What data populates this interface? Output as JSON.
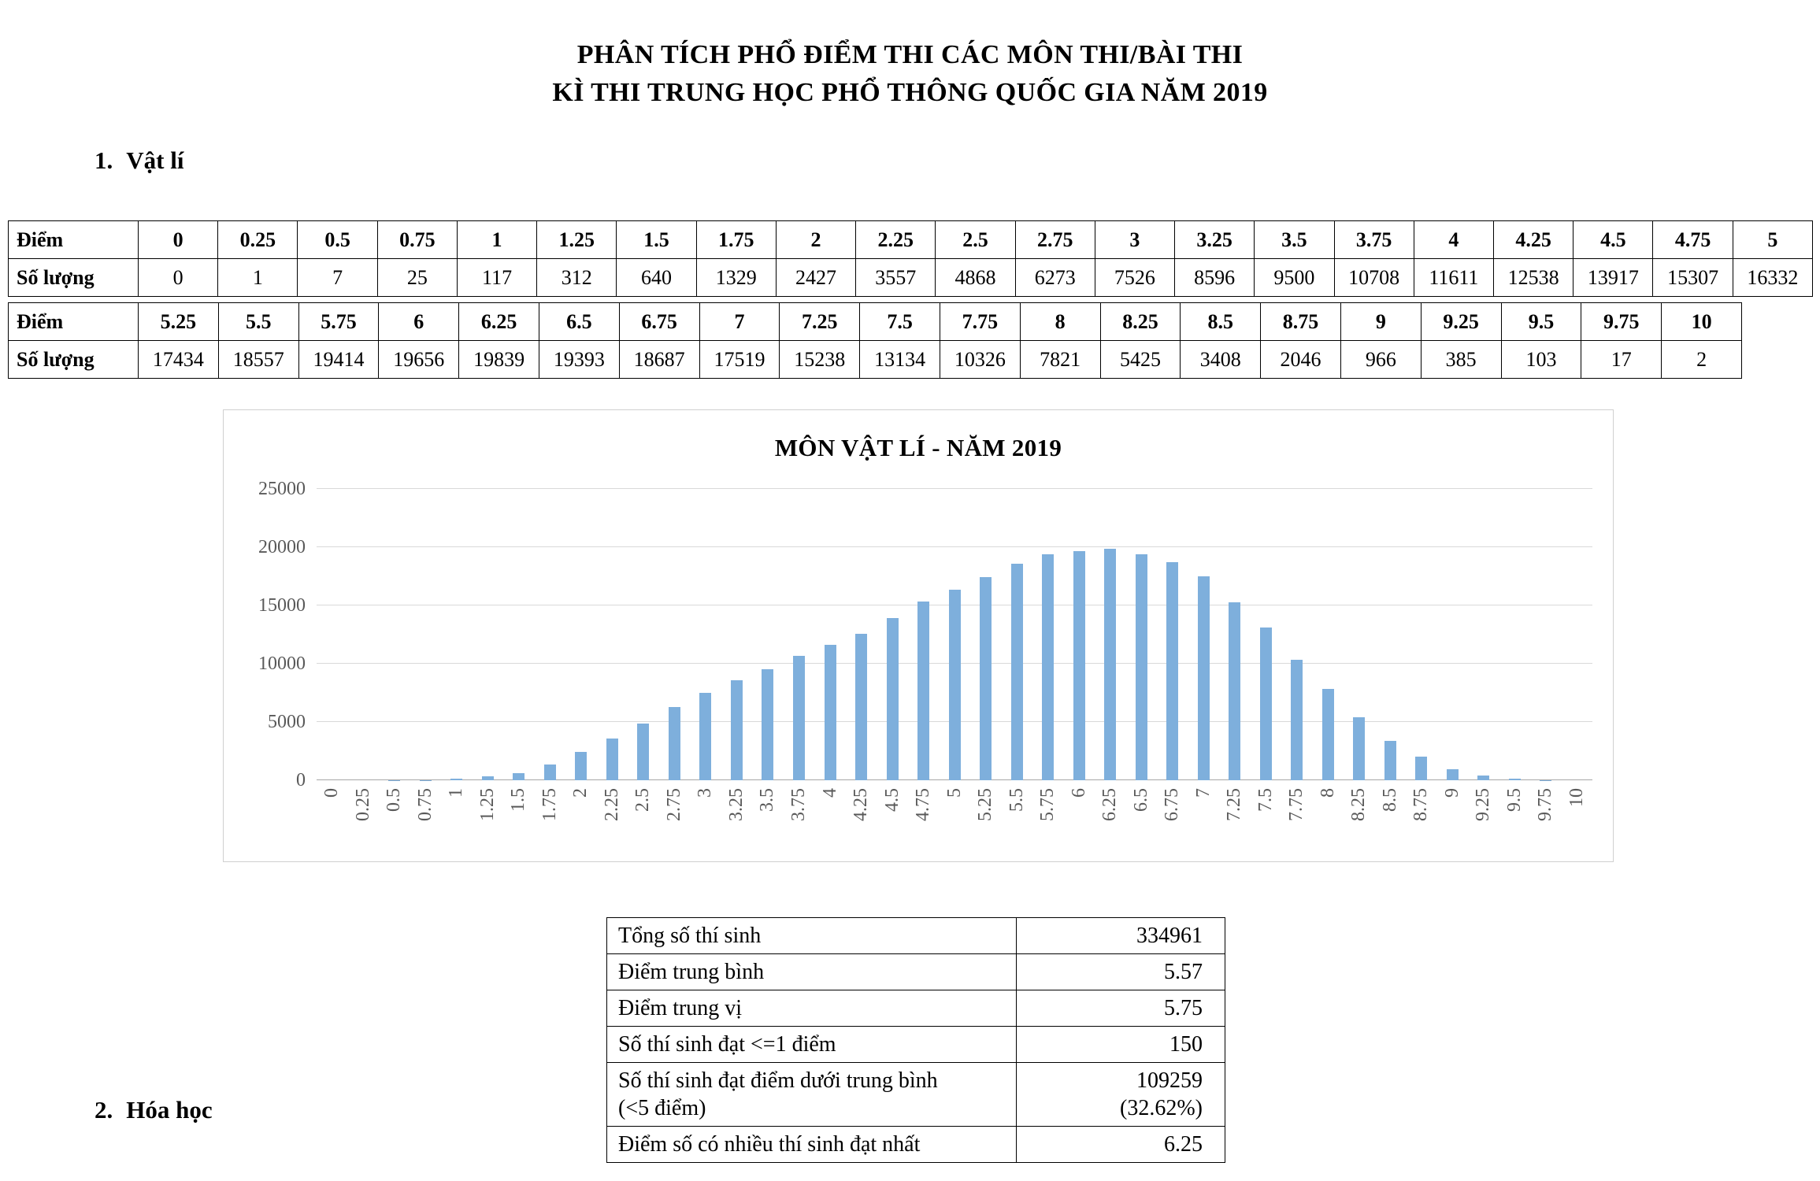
{
  "page": {
    "title_line1": "PHÂN TÍCH PHỔ ĐIỂM THI CÁC MÔN THI/BÀI THI",
    "title_line2": "KÌ THI TRUNG HỌC PHỔ THÔNG QUỐC GIA NĂM 2019"
  },
  "sections": [
    {
      "number": "1.",
      "label": "Vật lí"
    },
    {
      "number": "2.",
      "label": "Hóa học"
    }
  ],
  "score_table": {
    "score_label": "Điểm",
    "count_label": "Số lượng",
    "part1": {
      "scores": [
        "0",
        "0.25",
        "0.5",
        "0.75",
        "1",
        "1.25",
        "1.5",
        "1.75",
        "2",
        "2.25",
        "2.5",
        "2.75",
        "3",
        "3.25",
        "3.5",
        "3.75",
        "4",
        "4.25",
        "4.5",
        "4.75",
        "5"
      ],
      "counts": [
        "0",
        "1",
        "7",
        "25",
        "117",
        "312",
        "640",
        "1329",
        "2427",
        "3557",
        "4868",
        "6273",
        "7526",
        "8596",
        "9500",
        "10708",
        "11611",
        "12538",
        "13917",
        "15307",
        "16332"
      ]
    },
    "part2": {
      "scores": [
        "5.25",
        "5.5",
        "5.75",
        "6",
        "6.25",
        "6.5",
        "6.75",
        "7",
        "7.25",
        "7.5",
        "7.75",
        "8",
        "8.25",
        "8.5",
        "8.75",
        "9",
        "9.25",
        "9.5",
        "9.75",
        "10"
      ],
      "counts": [
        "17434",
        "18557",
        "19414",
        "19656",
        "19839",
        "19393",
        "18687",
        "17519",
        "15238",
        "13134",
        "10326",
        "7821",
        "5425",
        "3408",
        "2046",
        "966",
        "385",
        "103",
        "17",
        "2"
      ]
    }
  },
  "chart_data": {
    "type": "bar",
    "title": "MÔN VẬT LÍ - NĂM 2019",
    "categories": [
      "0",
      "0.25",
      "0.5",
      "0.75",
      "1",
      "1.25",
      "1.5",
      "1.75",
      "2",
      "2.25",
      "2.5",
      "2.75",
      "3",
      "3.25",
      "3.5",
      "3.75",
      "4",
      "4.25",
      "4.5",
      "4.75",
      "5",
      "5.25",
      "5.5",
      "5.75",
      "6",
      "6.25",
      "6.5",
      "6.75",
      "7",
      "7.25",
      "7.5",
      "7.75",
      "8",
      "8.25",
      "8.5",
      "8.75",
      "9",
      "9.25",
      "9.5",
      "9.75",
      "10"
    ],
    "values": [
      0,
      1,
      7,
      25,
      117,
      312,
      640,
      1329,
      2427,
      3557,
      4868,
      6273,
      7526,
      8596,
      9500,
      10708,
      11611,
      12538,
      13917,
      15307,
      16332,
      17434,
      18557,
      19414,
      19656,
      19839,
      19393,
      18687,
      17519,
      15238,
      13134,
      10326,
      7821,
      5425,
      3408,
      2046,
      966,
      385,
      103,
      17,
      2
    ],
    "xlabel": "",
    "ylabel": "",
    "ylim": [
      0,
      25000
    ],
    "yticks": [
      0,
      5000,
      10000,
      15000,
      20000,
      25000
    ],
    "grid": true,
    "legend": false,
    "bar_color": "#7EAFDC"
  },
  "summary_table": {
    "rows": [
      {
        "label": "Tổng số thí sinh",
        "value": "334961"
      },
      {
        "label": "Điểm trung bình",
        "value": "5.57"
      },
      {
        "label": "Điểm trung vị",
        "value": "5.75"
      },
      {
        "label": "Số thí sinh đạt <=1 điểm",
        "value": "150"
      },
      {
        "label": "Số thí sinh đạt điểm dưới trung bình\n(<5 điểm)",
        "value": "109259\n(32.62%)"
      },
      {
        "label": "Điểm số có nhiều thí sinh đạt nhất",
        "value": "6.25"
      }
    ]
  }
}
